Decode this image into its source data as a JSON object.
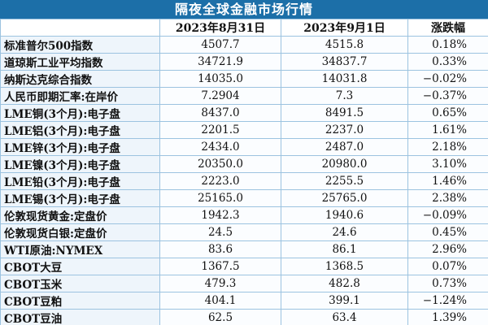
{
  "title": "隔夜全球金融市场行情",
  "columns": [
    "",
    "2023年8月31日",
    "2023年9月1日",
    "涨跌幅"
  ],
  "rows": [
    {
      "name": "标准普尔500指数",
      "d1": "4507.7",
      "d2": "4515.8",
      "chg": "0.18%"
    },
    {
      "name": "道琼斯工业平均指数",
      "d1": "34721.9",
      "d2": "34837.7",
      "chg": "0.33%"
    },
    {
      "name": "纳斯达克综合指数",
      "d1": "14035.0",
      "d2": "14031.8",
      "chg": "−0.02%"
    },
    {
      "name": "人民币即期汇率:在岸价",
      "d1": "7.2904",
      "d2": "7.3",
      "chg": "−0.37%"
    },
    {
      "name": "LME铜(3个月):电子盘",
      "d1": "8437.0",
      "d2": "8491.5",
      "chg": "0.65%"
    },
    {
      "name": "LME铝(3个月):电子盘",
      "d1": "2201.5",
      "d2": "2237.0",
      "chg": "1.61%"
    },
    {
      "name": "LME锌(3个月):电子盘",
      "d1": "2434.0",
      "d2": "2487.0",
      "chg": "2.18%"
    },
    {
      "name": "LME镍(3个月):电子盘",
      "d1": "20350.0",
      "d2": "20980.0",
      "chg": "3.10%"
    },
    {
      "name": "LME铅(3个月):电子盘",
      "d1": "2223.0",
      "d2": "2255.5",
      "chg": "1.46%"
    },
    {
      "name": "LME锡(3个月):电子盘",
      "d1": "25165.0",
      "d2": "25765.0",
      "chg": "2.38%"
    },
    {
      "name": "伦敦现货黄金:定盘价",
      "d1": "1942.3",
      "d2": "1940.6",
      "chg": "−0.09%"
    },
    {
      "name": "伦敦现货白银:定盘价",
      "d1": "24.5",
      "d2": "24.6",
      "chg": "0.45%"
    },
    {
      "name": "WTI原油:NYMEX",
      "d1": "83.6",
      "d2": "86.1",
      "chg": "2.96%"
    },
    {
      "name": "CBOT大豆",
      "d1": "1367.5",
      "d2": "1368.5",
      "chg": "0.07%"
    },
    {
      "name": "CBOT玉米",
      "d1": "479.3",
      "d2": "482.8",
      "chg": "0.73%"
    },
    {
      "name": "CBOT豆粕",
      "d1": "404.1",
      "d2": "399.1",
      "chg": "−1.24%"
    },
    {
      "name": "CBOT豆油",
      "d1": "62.5",
      "d2": "63.4",
      "chg": "1.39%"
    }
  ],
  "colors": {
    "title_bg": "#1c6fa8",
    "grid": "#9cc3e0"
  }
}
